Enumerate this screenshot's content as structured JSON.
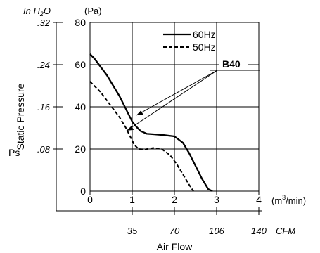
{
  "chart_data": {
    "type": "line",
    "title": "",
    "x_axis": {
      "label": "Air Flow",
      "unit": "(m3/min)",
      "unit_base": "(m",
      "unit_sup": "3",
      "unit_tail": "/min)",
      "range": [
        0,
        4
      ],
      "ticks": [
        "0",
        "1",
        "2",
        "3",
        "4"
      ],
      "secondary_unit": "CFM",
      "secondary_ticks": [
        {
          "at": 1,
          "label": "35"
        },
        {
          "at": 2,
          "label": "70"
        },
        {
          "at": 3,
          "label": "106"
        },
        {
          "at": 4,
          "label": "140"
        }
      ]
    },
    "y_axis": {
      "label": "Static Pressure",
      "symbol": "Ps",
      "unit": "(Pa)",
      "range": [
        0,
        80
      ],
      "ticks": [
        "0",
        "20",
        "40",
        "60",
        "80"
      ],
      "secondary_unit": "In H2O",
      "secondary_unit_prefix": "In H",
      "secondary_unit_sub": "2",
      "secondary_unit_suffix": "O",
      "secondary_ticks": [
        {
          "at": 20,
          "label": ".08"
        },
        {
          "at": 40,
          "label": ".16"
        },
        {
          "at": 60,
          "label": ".24"
        },
        {
          "at": 80,
          "label": ".32"
        }
      ]
    },
    "grid": true,
    "legend": {
      "position": "top-right",
      "entries": [
        {
          "name": "60Hz",
          "style": "solid"
        },
        {
          "name": "50Hz",
          "style": "dashed"
        }
      ]
    },
    "annotation": {
      "text": "B40"
    },
    "series": [
      {
        "name": "60Hz",
        "style": "solid",
        "color": "#000000",
        "x": [
          0,
          0.1,
          0.25,
          0.4,
          0.55,
          0.7,
          0.8,
          0.9,
          1.0,
          1.1,
          1.2,
          1.35,
          1.5,
          1.75,
          2.0,
          2.2,
          2.35,
          2.5,
          2.65,
          2.8,
          2.9
        ],
        "y": [
          65,
          63,
          59,
          55,
          50,
          45,
          41,
          37,
          33,
          30.5,
          28.5,
          27.2,
          27,
          26.6,
          26,
          23,
          18,
          12,
          6,
          1,
          0
        ]
      },
      {
        "name": "50Hz",
        "style": "dashed",
        "color": "#000000",
        "x": [
          0,
          0.1,
          0.25,
          0.4,
          0.55,
          0.7,
          0.85,
          0.95,
          1.05,
          1.15,
          1.3,
          1.5,
          1.7,
          1.9,
          2.05,
          2.2,
          2.35,
          2.45
        ],
        "y": [
          52,
          50,
          47,
          43,
          39,
          35,
          30,
          26,
          22,
          20,
          19.8,
          20.5,
          20,
          17,
          13,
          8,
          3,
          0
        ]
      }
    ]
  }
}
